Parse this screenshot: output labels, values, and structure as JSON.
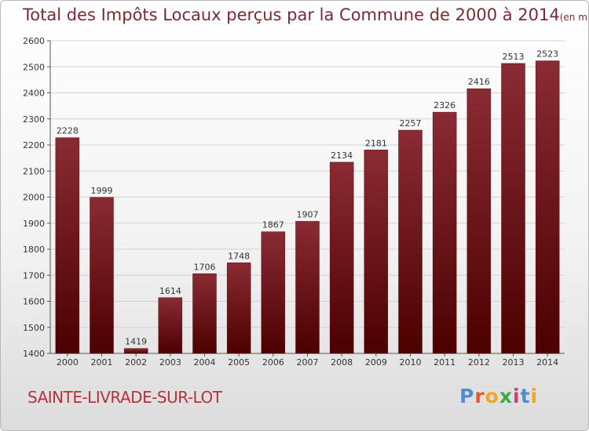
{
  "chart_data": {
    "type": "bar",
    "title": "Total des Impôts Locaux perçus par la Commune de 2000 à 2014",
    "unit_label": "(en milliers d'€)",
    "categories": [
      "2000",
      "2001",
      "2002",
      "2003",
      "2004",
      "2005",
      "2006",
      "2007",
      "2008",
      "2009",
      "2010",
      "2011",
      "2012",
      "2013",
      "2014"
    ],
    "values": [
      2228,
      1999,
      1419,
      1614,
      1706,
      1748,
      1867,
      1907,
      2134,
      2181,
      2257,
      2326,
      2416,
      2513,
      2523
    ],
    "ylim": [
      1400,
      2600
    ],
    "yticks": [
      1400,
      1500,
      1600,
      1700,
      1800,
      1900,
      2000,
      2100,
      2200,
      2300,
      2400,
      2500,
      2600
    ],
    "xlabel": "",
    "ylabel": "",
    "grid": true,
    "bar_color_top": "#8a2b34",
    "bar_color_bottom": "#4c0000"
  },
  "footer": {
    "commune": "SAINTE-LIVRADE-SUR-LOT",
    "brand": "Proxiti",
    "brand_colors": [
      "#4a8fd4",
      "#e35a2e",
      "#f2a71b",
      "#3ca84a",
      "#d23c7a",
      "#4a8fd4",
      "#f2a71b"
    ]
  }
}
